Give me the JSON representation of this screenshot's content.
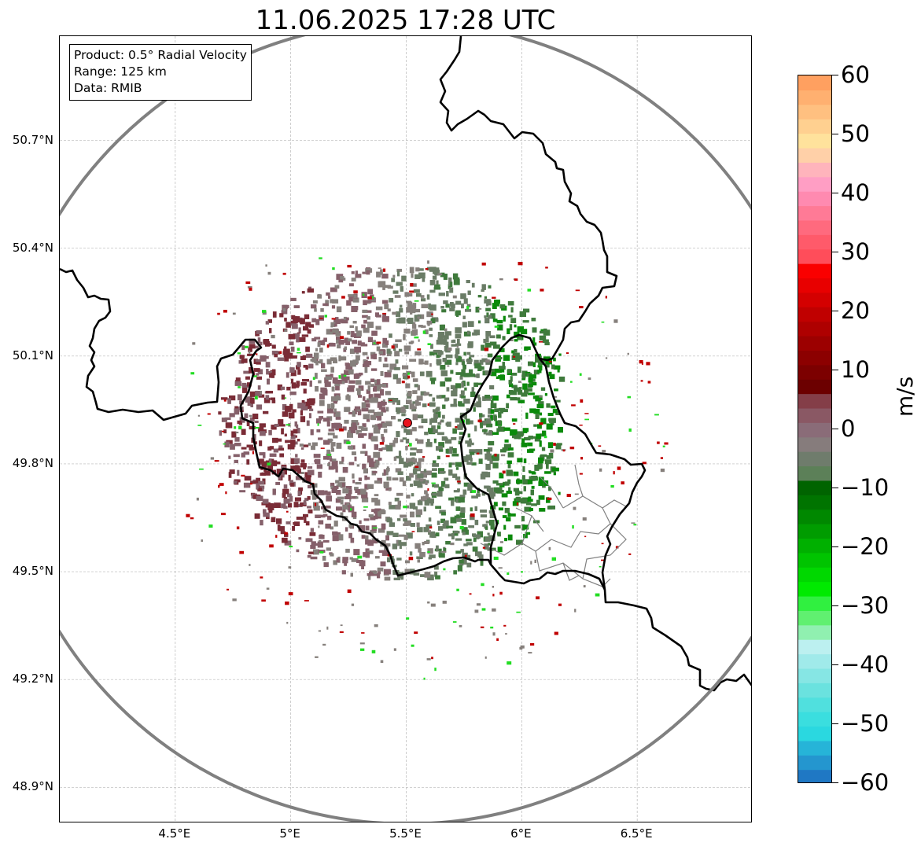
{
  "title": "11.06.2025 17:28 UTC",
  "info": {
    "product": "Product: 0.5° Radial Velocity",
    "range": "Range: 125 km",
    "data": "Data: RMIB"
  },
  "axes": {
    "lat_labels": [
      "50.7°N",
      "50.4°N",
      "50.1°N",
      "49.8°N",
      "49.5°N",
      "49.2°N",
      "48.9°N"
    ],
    "lon_labels": [
      "4.5°E",
      "5°E",
      "5.5°E",
      "6°E",
      "6.5°E"
    ],
    "lat_values": [
      50.7,
      50.4,
      50.1,
      49.8,
      49.5,
      49.2,
      48.9
    ],
    "lon_values": [
      4.5,
      5.0,
      5.5,
      6.0,
      6.5
    ],
    "lon_range": [
      4.0,
      7.0
    ],
    "lat_range": [
      48.8,
      50.99
    ],
    "grid": true
  },
  "radar": {
    "site_lat": 49.914,
    "site_lon": 5.505,
    "range_ring_color": "#808080",
    "site_marker_color": "#e8141e"
  },
  "colorbar": {
    "unit": "m/s",
    "min": -60,
    "max": 60,
    "ticks": [
      60,
      50,
      40,
      30,
      20,
      10,
      0,
      -10,
      -20,
      -30,
      -40,
      -50,
      -60
    ],
    "tick_labels": [
      "60",
      "50",
      "40",
      "30",
      "20",
      "10",
      "0",
      "−10",
      "−20",
      "−30",
      "−40",
      "−50",
      "−60"
    ],
    "colors_bottom_to_top": [
      "#1f78c4",
      "#2496cf",
      "#26b4d8",
      "#2ad8e0",
      "#3adedf",
      "#50e0de",
      "#6ae2df",
      "#86e6e4",
      "#a0eaea",
      "#bcf0f0",
      "#90f0b0",
      "#60f070",
      "#30f040",
      "#00ea00",
      "#00d800",
      "#00c400",
      "#00b000",
      "#009c00",
      "#008800",
      "#007400",
      "#006400",
      "#5c8058",
      "#6f7c6c",
      "#867c7c",
      "#8a6c78",
      "#8a5864",
      "#843e48",
      "#6c0000",
      "#7c0000",
      "#8c0000",
      "#9c0000",
      "#ae0000",
      "#c00000",
      "#d40000",
      "#e80000",
      "#fa0000",
      "#ff4d5a",
      "#ff5a6a",
      "#ff6a7e",
      "#ff7a96",
      "#ff8ab0",
      "#ff9ec4",
      "#ffb4bc",
      "#ffd0a8",
      "#ffe29c",
      "#ffd090",
      "#ffc080",
      "#ffb070",
      "#ffa060"
    ]
  },
  "layer_colors": {
    "country_border": "#000000",
    "district_border": "#808080",
    "receding_dark": "#7a2c36",
    "receding_mid": "#85606a",
    "neutral": "#86807c",
    "approaching_mid": "#6a7c66",
    "approaching_dark": "#3f7a3c",
    "strong_green": "#0a8a0a",
    "noise_red": "#c00000",
    "noise_green": "#22dd22"
  }
}
